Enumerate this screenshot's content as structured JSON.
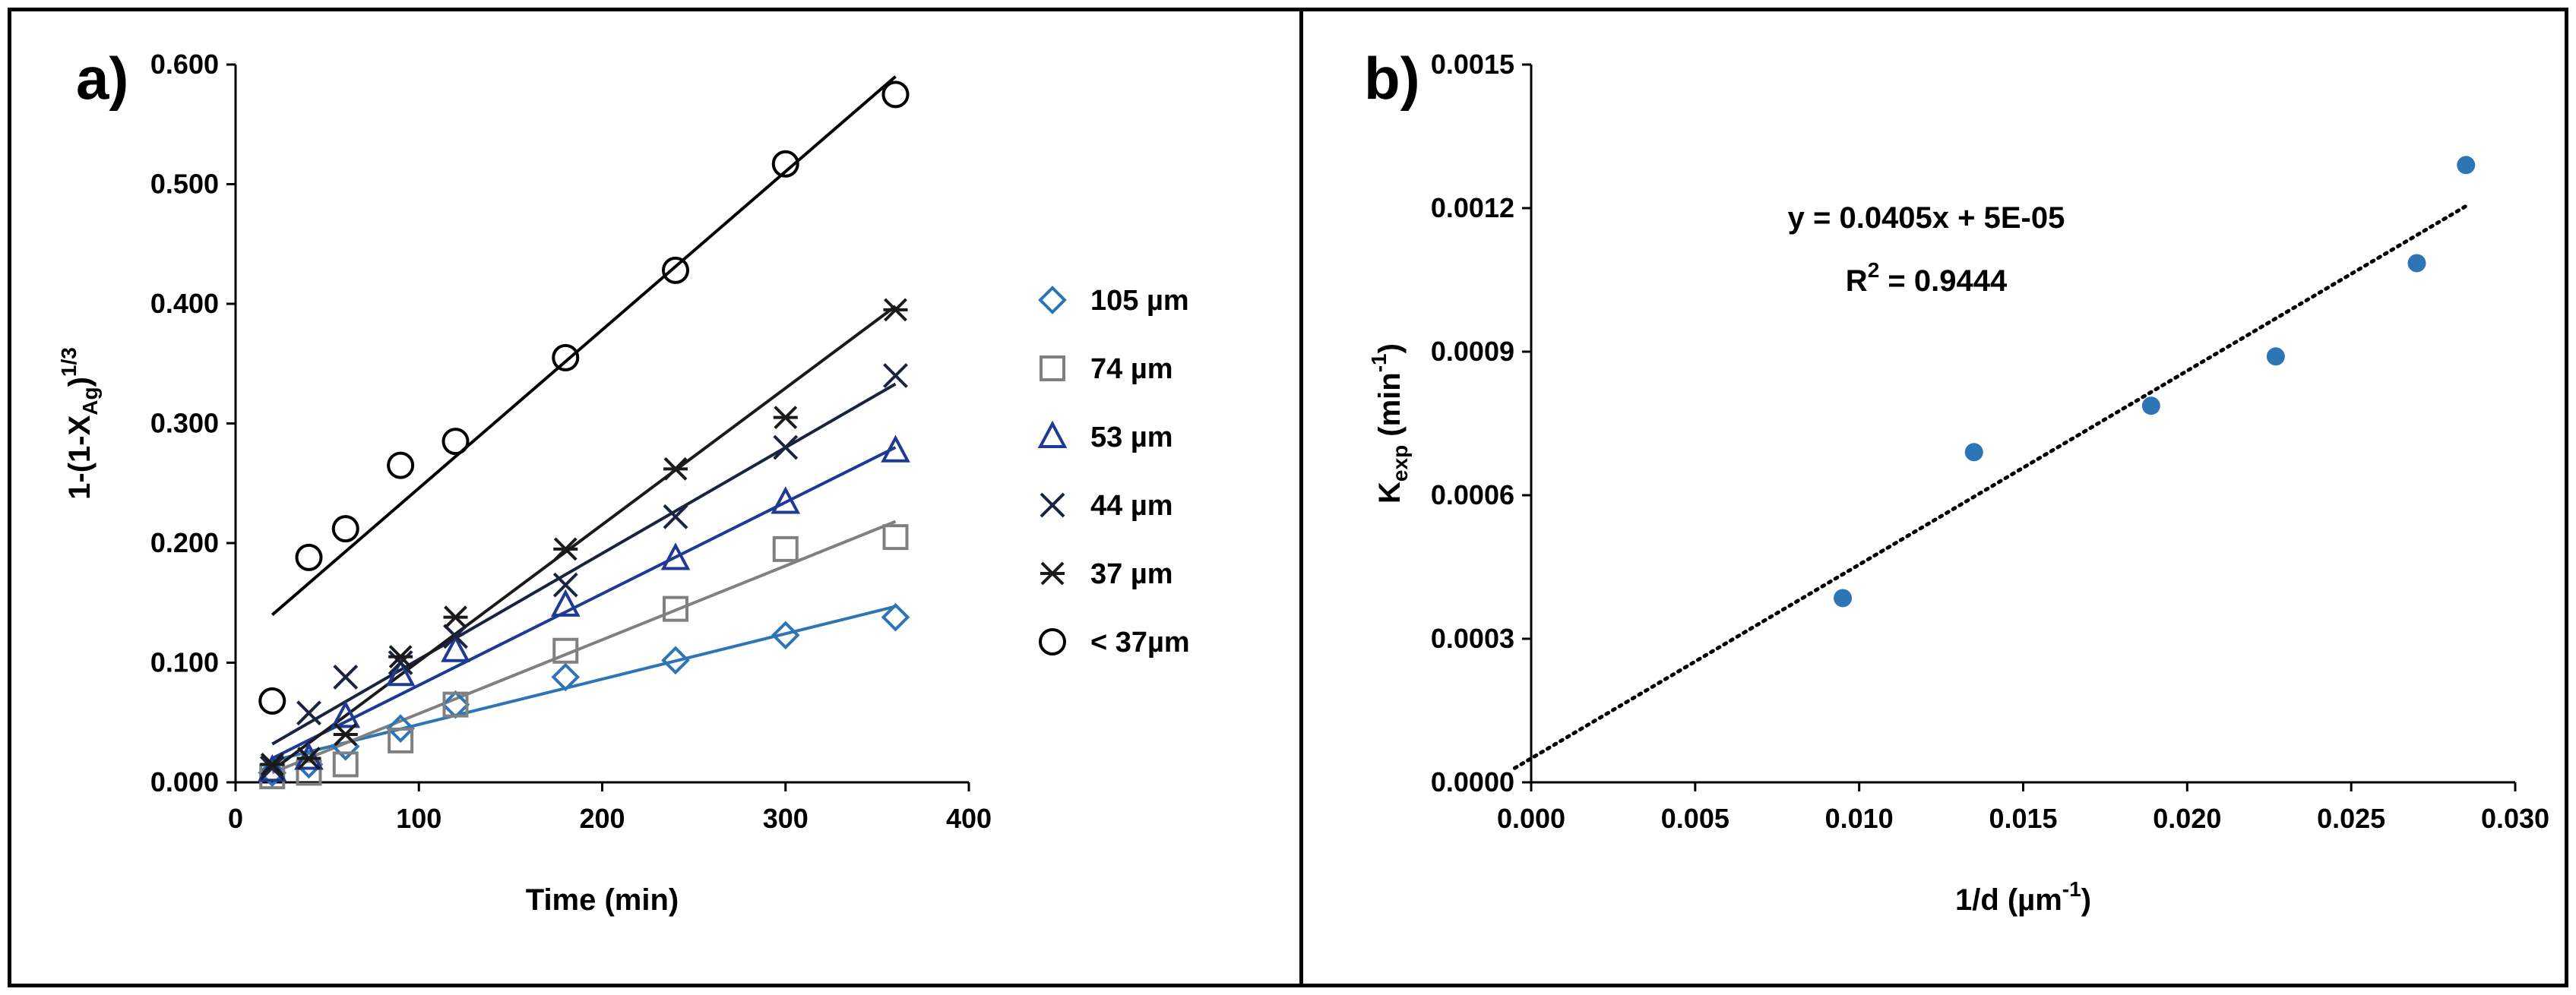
{
  "chart_data": [
    {
      "type": "scatter",
      "panel_label": "a)",
      "xlabel": "Time (min)",
      "ylabel": "1-(1-X_Ag)^1/3",
      "ylabel_parts": {
        "pre": "1-(1-X",
        "sub": "Ag",
        "post": ")",
        "sup": "1/3"
      },
      "xlim": [
        0,
        400
      ],
      "ylim": [
        0,
        0.6
      ],
      "x_ticks": [
        0,
        100,
        200,
        300,
        400
      ],
      "x_tick_labels": [
        "0",
        "100",
        "200",
        "300",
        "400"
      ],
      "y_ticks": [
        0,
        0.1,
        0.2,
        0.3,
        0.4,
        0.5,
        0.6
      ],
      "y_tick_labels": [
        "0.000",
        "0.100",
        "0.200",
        "0.300",
        "0.400",
        "0.500",
        "0.600"
      ],
      "grid": false,
      "legend_position": "right",
      "series": [
        {
          "name": "105 µm",
          "marker": "diamond",
          "color": "#2e75b6",
          "line_color": "#2e75b6",
          "x": [
            20,
            40,
            60,
            90,
            120,
            180,
            240,
            300,
            360
          ],
          "y": [
            0.008,
            0.015,
            0.03,
            0.045,
            0.065,
            0.088,
            0.102,
            0.123,
            0.138
          ],
          "fit": [
            [
              20,
              0.018
            ],
            [
              360,
              0.147
            ]
          ]
        },
        {
          "name": "74 µm",
          "marker": "square",
          "color": "#808080",
          "line_color": "#808080",
          "x": [
            20,
            40,
            60,
            90,
            120,
            180,
            240,
            300,
            360
          ],
          "y": [
            0.005,
            0.008,
            0.015,
            0.035,
            0.065,
            0.11,
            0.145,
            0.195,
            0.205
          ],
          "fit": [
            [
              20,
              0.008
            ],
            [
              360,
              0.218
            ]
          ]
        },
        {
          "name": "53 µm",
          "marker": "triangle",
          "color": "#1f3a93",
          "line_color": "#1f3a93",
          "x": [
            20,
            40,
            60,
            90,
            120,
            180,
            240,
            300,
            360
          ],
          "y": [
            0.01,
            0.02,
            0.055,
            0.09,
            0.11,
            0.148,
            0.187,
            0.234,
            0.277
          ],
          "fit": [
            [
              20,
              0.02
            ],
            [
              360,
              0.28
            ]
          ]
        },
        {
          "name": "44 µm",
          "marker": "x",
          "color": "#1a2440",
          "line_color": "#1a2440",
          "x": [
            20,
            40,
            60,
            90,
            120,
            180,
            240,
            300,
            360
          ],
          "y": [
            0.012,
            0.058,
            0.088,
            0.1,
            0.122,
            0.165,
            0.222,
            0.28,
            0.34
          ],
          "fit": [
            [
              20,
              0.032
            ],
            [
              360,
              0.333
            ]
          ]
        },
        {
          "name": "37 µm",
          "marker": "asterisk",
          "color": "#1a1a1a",
          "line_color": "#1a1a1a",
          "x": [
            20,
            40,
            60,
            90,
            120,
            180,
            240,
            300,
            360
          ],
          "y": [
            0.015,
            0.02,
            0.04,
            0.105,
            0.138,
            0.195,
            0.262,
            0.305,
            0.395
          ],
          "fit": [
            [
              20,
              0.01
            ],
            [
              360,
              0.398
            ]
          ]
        },
        {
          "name": "< 37µm",
          "marker": "circle",
          "color": "#000000",
          "line_color": "#000000",
          "x": [
            20,
            40,
            60,
            90,
            120,
            180,
            240,
            300,
            360
          ],
          "y": [
            0.068,
            0.188,
            0.212,
            0.265,
            0.285,
            0.355,
            0.428,
            0.517,
            0.575
          ],
          "fit": [
            [
              20,
              0.14
            ],
            [
              360,
              0.59
            ]
          ]
        }
      ]
    },
    {
      "type": "scatter",
      "panel_label": "b)",
      "xlabel": "1/d (µm⁻¹)",
      "ylabel": "K_exp (min-1)",
      "ylabel_parts": {
        "pre": "K",
        "sub": "exp",
        "mid": " (min",
        "sup": "-1",
        "post": ")"
      },
      "xlabel_parts": {
        "pre": "1/d (µm",
        "sup": "-1",
        "post": ")"
      },
      "xlim": [
        0,
        0.03
      ],
      "ylim": [
        0,
        0.0015
      ],
      "x_ticks": [
        0,
        0.005,
        0.01,
        0.015,
        0.02,
        0.025,
        0.03
      ],
      "x_tick_labels": [
        "0.000",
        "0.005",
        "0.010",
        "0.015",
        "0.020",
        "0.025",
        "0.030"
      ],
      "y_ticks": [
        0,
        0.0003,
        0.0006,
        0.0009,
        0.0012,
        0.0015
      ],
      "y_tick_labels": [
        "0.0000",
        "0.0003",
        "0.0006",
        "0.0009",
        "0.0012",
        "0.0015"
      ],
      "grid": false,
      "point_color": "#2e75b6",
      "x": [
        0.0095,
        0.0135,
        0.0189,
        0.0227,
        0.027,
        0.0285
      ],
      "y": [
        0.000385,
        0.00069,
        0.000787,
        0.00089,
        0.001085,
        0.00129
      ],
      "trendline": {
        "slope": 0.0405,
        "intercept": 5e-05,
        "x_range": [
          -0.0005,
          0.0285
        ],
        "style": "dotted"
      },
      "annotations": [
        "y = 0.0405x + 5E-05",
        "R2 = 0.9444"
      ],
      "r2_parts": {
        "pre": "R",
        "sup": "2",
        "post": " = 0.9444"
      }
    }
  ]
}
